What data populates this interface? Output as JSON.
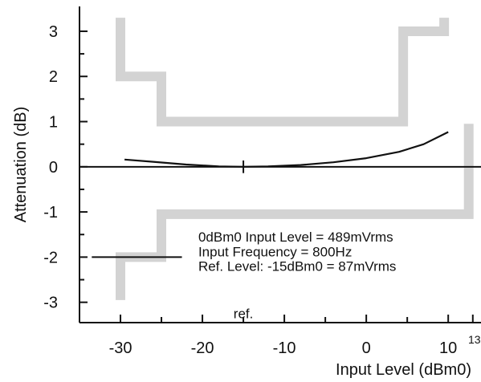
{
  "chart_data": {
    "type": "line",
    "xlabel": "Input Level (dBm0)",
    "ylabel": "Attenuation (dB)",
    "xlim": [
      -35,
      14
    ],
    "ylim": [
      -3.45,
      3.55
    ],
    "x_ticks": [
      -30,
      -20,
      -10,
      0,
      10
    ],
    "x_tick_labels": [
      "-30",
      "-20",
      "-10",
      "0",
      "10"
    ],
    "x_edge_label": {
      "x": 13,
      "text": "13"
    },
    "y_ticks": [
      3,
      2,
      1,
      0,
      -1,
      -2,
      -3
    ],
    "y_tick_labels": [
      "3",
      "2",
      "1",
      "0",
      "-1",
      "-2",
      "-3"
    ],
    "series": [
      {
        "values_x": [
          -29.5,
          -26,
          -22,
          -18,
          -15,
          -12,
          -8,
          -4,
          0,
          4,
          7,
          10
        ],
        "values_y": [
          0.16,
          0.11,
          0.05,
          0.01,
          0.0,
          0.01,
          0.04,
          0.1,
          0.19,
          0.33,
          0.5,
          0.77
        ],
        "color": "#111111"
      }
    ],
    "upper_mask": {
      "x": [
        -30,
        -30,
        -25,
        -25,
        4.5,
        4.5,
        9.5,
        9.5
      ],
      "y": [
        3.3,
        2.0,
        2.0,
        1.0,
        1.0,
        3.0,
        3.0,
        3.3
      ],
      "color": "#d3d3d3"
    },
    "lower_mask": {
      "x": [
        -30,
        -30,
        -25,
        -25,
        12.5,
        12.5
      ],
      "y": [
        -2.95,
        -2.0,
        -2.0,
        -1.05,
        -1.05,
        0.95
      ],
      "color": "#d3d3d3"
    },
    "zero_line": {
      "y": 0,
      "x_from": -35,
      "x_to": 14
    },
    "reference_marker": {
      "x": -15,
      "y": 0,
      "half_height": 0.14
    },
    "legend_line": {
      "x_from": -33.5,
      "x_to": -22.5,
      "y": -2.0
    },
    "ref_label": {
      "x": -15,
      "y": -3.3,
      "text": "ref."
    },
    "annotations": [
      {
        "x": -20.5,
        "y": -1.55,
        "text": "0dBm0 Input Level = 489mVrms"
      },
      {
        "x": -20.5,
        "y": -1.88,
        "text": "Input Frequency = 800Hz"
      },
      {
        "x": -20.5,
        "y": -2.2,
        "text": "Ref. Level: -15dBm0 = 87mVrms"
      }
    ]
  }
}
